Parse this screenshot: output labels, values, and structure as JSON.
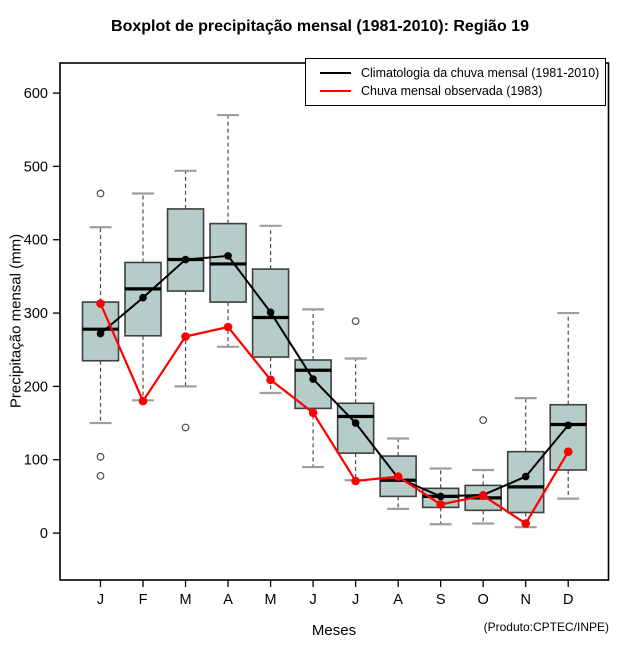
{
  "window": {
    "title": "Boxplot de precipitação mensal (1981-2010): Região 19"
  },
  "colors": {
    "background": "#FFFFFF",
    "box_fill": "#B5CCC9",
    "box_border": "#3F3F3F",
    "whisker": "#4D4D4D",
    "whisker_cap": "#9E9E9E",
    "median": "#000000",
    "climatology_line": "#000000",
    "observed_line": "#FF0000",
    "outlier_stroke": "#4D4D4D",
    "axis": "#000000"
  },
  "chart_data": {
    "type": "boxplot",
    "title": "Boxplot de precipitação mensal (1981-2010): Região 19",
    "xlabel": "Meses",
    "ylabel": "Precipitação mensal (mm)",
    "footnote": "(Produto:CPTEC/INPE)",
    "categories": [
      "J",
      "F",
      "M",
      "A",
      "M",
      "J",
      "J",
      "A",
      "S",
      "O",
      "N",
      "D"
    ],
    "yticks": [
      0,
      100,
      200,
      300,
      400,
      500,
      600
    ],
    "ylim": [
      -64,
      641
    ],
    "grid": false,
    "legend_position": "top-right",
    "boxes": [
      {
        "month": "J",
        "q1": 235,
        "median": 278,
        "q3": 315,
        "whisker_low": 150,
        "whisker_high": 417,
        "outliers": [
          463,
          104,
          78
        ]
      },
      {
        "month": "F",
        "q1": 269,
        "median": 333,
        "q3": 369,
        "whisker_low": 181,
        "whisker_high": 463,
        "outliers": []
      },
      {
        "month": "M",
        "q1": 330,
        "median": 373,
        "q3": 442,
        "whisker_low": 200,
        "whisker_high": 494,
        "outliers": [
          144
        ]
      },
      {
        "month": "A",
        "q1": 315,
        "median": 367,
        "q3": 422,
        "whisker_low": 254,
        "whisker_high": 570,
        "outliers": []
      },
      {
        "month": "M",
        "q1": 240,
        "median": 294,
        "q3": 360,
        "whisker_low": 191,
        "whisker_high": 419,
        "outliers": []
      },
      {
        "month": "J",
        "q1": 170,
        "median": 222,
        "q3": 236,
        "whisker_low": 90,
        "whisker_high": 305,
        "outliers": []
      },
      {
        "month": "J",
        "q1": 109,
        "median": 159,
        "q3": 177,
        "whisker_low": 72,
        "whisker_high": 238,
        "outliers": [
          289
        ]
      },
      {
        "month": "A",
        "q1": 50,
        "median": 72,
        "q3": 105,
        "whisker_low": 33,
        "whisker_high": 129,
        "outliers": []
      },
      {
        "month": "S",
        "q1": 35,
        "median": 50,
        "q3": 61,
        "whisker_low": 12,
        "whisker_high": 88,
        "outliers": []
      },
      {
        "month": "O",
        "q1": 31,
        "median": 48,
        "q3": 65,
        "whisker_low": 13,
        "whisker_high": 86,
        "outliers": [
          154
        ]
      },
      {
        "month": "N",
        "q1": 28,
        "median": 63,
        "q3": 111,
        "whisker_low": 8,
        "whisker_high": 184,
        "outliers": []
      },
      {
        "month": "D",
        "q1": 86,
        "median": 148,
        "q3": 175,
        "whisker_low": 47,
        "whisker_high": 300,
        "outliers": []
      }
    ],
    "series": [
      {
        "name": "Climatologia da chuva mensal (1981-2010)",
        "color": "#000000",
        "values": [
          272,
          321,
          373,
          378,
          301,
          210,
          150,
          75,
          50,
          52,
          77,
          147
        ]
      },
      {
        "name": "Chuva mensal observada (1983)",
        "color": "#FF0000",
        "values": [
          313,
          180,
          268,
          281,
          209,
          164,
          71,
          77,
          39,
          51,
          13,
          111
        ]
      }
    ]
  }
}
